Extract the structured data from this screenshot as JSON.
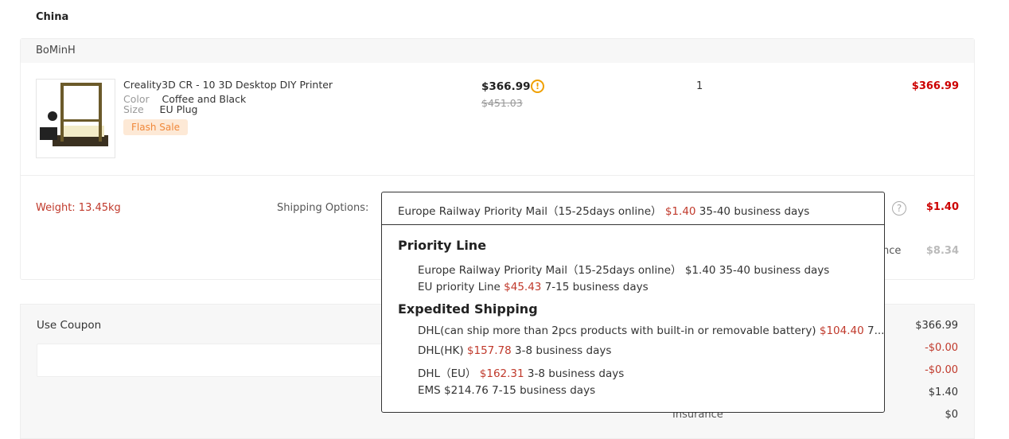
{
  "country": "China",
  "store": "BoMinH",
  "product": {
    "title": "Creality3D CR - 10 3D Desktop DIY Printer",
    "color_label": "Color",
    "color": "Coffee and Black",
    "size_label": "Size",
    "size": "EU Plug",
    "badge": "Flash Sale",
    "price": "$366.99",
    "original_price": "$451.03",
    "quantity": "1",
    "subtotal": "$366.99"
  },
  "shipping": {
    "weight": "Weight: 13.45kg",
    "label": "Shipping Options:",
    "selected": {
      "name": "Europe Railway Priority Mail（15-25days online）",
      "price": "$1.40",
      "time": "35-40 business days"
    },
    "cost": "$1.40",
    "insurance_label_partial": "ance",
    "insurance_cost": "$8.34",
    "groups": [
      {
        "title": "Priority Line",
        "options": [
          {
            "name": "Europe Railway Priority Mail（15-25days online）",
            "price": "$1.40",
            "time": "35-40 business days",
            "highlighted": true
          },
          {
            "name": "EU priority Line",
            "price": "$45.43",
            "time": "7-15 business days"
          }
        ]
      },
      {
        "title": "Expedited Shipping",
        "options": [
          {
            "name": "DHL(can ship more than 2pcs products with built-in or removable battery)",
            "price": "$104.40",
            "time": "7..."
          },
          {
            "name": "DHL(HK)",
            "price": "$157.78",
            "time": "3-8 business days"
          },
          {
            "name": "DHL（EU）",
            "price": "$162.31",
            "time": "3-8 business days"
          },
          {
            "name": "EMS",
            "price": "$214.76",
            "time": "7-15 business days",
            "highlighted": true
          }
        ]
      }
    ]
  },
  "coupon": {
    "label": "Use Coupon",
    "value": ""
  },
  "summary": {
    "values": [
      "$366.99",
      "-$0.00",
      "-$0.00",
      "$1.40",
      "$0"
    ],
    "insurance_label": "Insurance"
  },
  "colors": {
    "accent_red": "#c00",
    "orange": "#f0883a"
  }
}
